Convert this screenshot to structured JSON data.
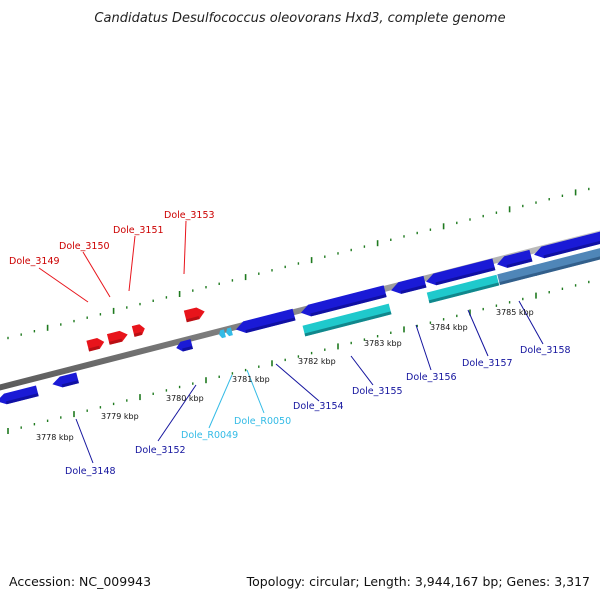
{
  "title": "Candidatus Desulfococcus oleovorans Hxd3, complete genome",
  "footer": {
    "accession": "Accession: NC_009943",
    "summary": "Topology: circular; Length: 3,944,167 bp; Genes: 3,317"
  },
  "colors": {
    "forward_gene": "#e8141b",
    "reverse_gene": "#1a1ad6",
    "reverse_rna": "#33bbe6",
    "reverse_label": "#14149e",
    "feature_rna": "#1fc9cc",
    "feature_other": "#4f86b8",
    "backbone": "#8a8a8a",
    "ticks": "#1f7a1f"
  },
  "scale_labels": [
    "3778 kbp",
    "3779 kbp",
    "3780 kbp",
    "3781 kbp",
    "3782 kbp",
    "3783 kbp",
    "3784 kbp",
    "3785 kbp"
  ],
  "genes_forward": [
    {
      "label": "Dole_3149"
    },
    {
      "label": "Dole_3150"
    },
    {
      "label": "Dole_3151"
    },
    {
      "label": "Dole_3153"
    }
  ],
  "genes_reverse": [
    {
      "label": "Dole_3148",
      "kind": "gene"
    },
    {
      "label": "Dole_3152",
      "kind": "gene"
    },
    {
      "label": "Dole_R0049",
      "kind": "rna"
    },
    {
      "label": "Dole_R0050",
      "kind": "rna"
    },
    {
      "label": "Dole_3154",
      "kind": "gene"
    },
    {
      "label": "Dole_3155",
      "kind": "gene"
    },
    {
      "label": "Dole_3156",
      "kind": "gene"
    },
    {
      "label": "Dole_3157",
      "kind": "gene"
    },
    {
      "label": "Dole_3158",
      "kind": "gene"
    }
  ]
}
